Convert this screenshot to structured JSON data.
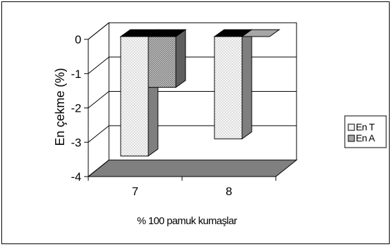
{
  "chart_data": {
    "type": "bar",
    "style": "3d-clustered-column",
    "categories": [
      "7",
      "8"
    ],
    "series": [
      {
        "name": "En T",
        "values": [
          -3.4,
          -2.9
        ],
        "color": "#f2f2f2",
        "pattern": "dots"
      },
      {
        "name": "En A",
        "values": [
          -1.4,
          0.0
        ],
        "color": "#a6a6a6",
        "pattern": "stipple"
      }
    ],
    "xlabel": "% 100 pamuk kumaşlar",
    "ylabel": "En çekme (%)",
    "ylim": [
      -4,
      0
    ],
    "yticks": [
      0,
      -1,
      -2,
      -3,
      -4
    ],
    "grid": true,
    "legend_position": "right",
    "colors": {
      "wall": "#ffffff",
      "floor": "#808080",
      "top_face": "#000000",
      "border": "#000000"
    }
  }
}
